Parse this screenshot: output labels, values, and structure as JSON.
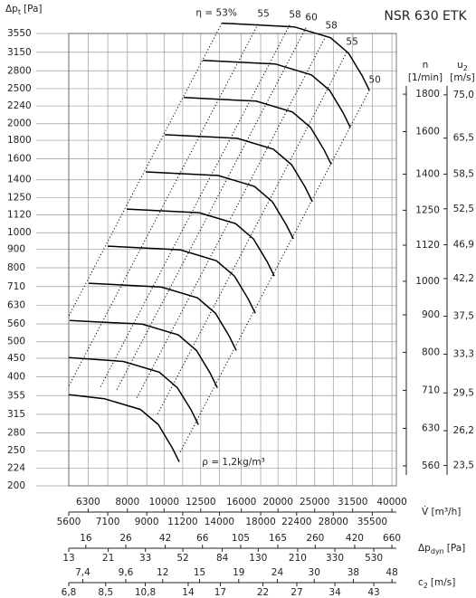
{
  "chart_data": {
    "type": "line",
    "title": "NSR 630 ETK",
    "y_label": {
      "text": "Δp",
      "sub": "t",
      "unit": "[Pa]"
    },
    "x_label": "V̇ [m³/h]",
    "x_scale": "log",
    "y_scale": "log",
    "grid": true,
    "color": "#000000",
    "xlim": [
      5600,
      41100
    ],
    "ylim": [
      200,
      3550
    ],
    "xticks": [
      5600,
      6300,
      7100,
      8000,
      9000,
      10000,
      11200,
      12500,
      14000,
      16000,
      18000,
      20000,
      22400,
      25000,
      28000,
      31500,
      35500,
      40000
    ],
    "yticks": [
      3550,
      3150,
      2800,
      2500,
      2240,
      2000,
      1800,
      1600,
      1400,
      1250,
      1120,
      1000,
      900,
      800,
      710,
      630,
      560,
      500,
      450,
      400,
      355,
      315,
      280,
      250,
      224,
      200
    ],
    "series": [
      {
        "x": [
          14210,
          22080,
          27520,
          30720,
          33370,
          34870
        ],
        "values": [
          3790,
          3703,
          3456,
          3133,
          2714,
          2475
        ]
      },
      {
        "x": [
          12660,
          19670,
          24510,
          27370,
          29730,
          31060
        ],
        "values": [
          2992,
          2924,
          2728,
          2473,
          2143,
          1954
        ]
      },
      {
        "x": [
          11280,
          17520,
          21840,
          24380,
          26480,
          27670
        ],
        "values": [
          2362,
          2308,
          2154,
          1953,
          1692,
          1543
        ]
      },
      {
        "x": [
          10050,
          15610,
          19450,
          21720,
          23590,
          24650
        ],
        "values": [
          1865,
          1822,
          1701,
          1542,
          1336,
          1218
        ]
      },
      {
        "x": [
          8950,
          13900,
          17330,
          19340,
          21010,
          21960
        ],
        "values": [
          1472,
          1439,
          1343,
          1217,
          1054,
          962
        ]
      },
      {
        "x": [
          7970,
          12380,
          15440,
          17230,
          18720,
          19560
        ],
        "values": [
          1162,
          1136,
          1060,
          961,
          832,
          759
        ]
      },
      {
        "x": [
          7100,
          11030,
          13750,
          15350,
          16680,
          17420
        ],
        "values": [
          918,
          897,
          837,
          759,
          657,
          599
        ]
      },
      {
        "x": [
          6320,
          9830,
          12250,
          13670,
          14850,
          15520
        ],
        "values": [
          725,
          708,
          661,
          599,
          519,
          473
        ]
      },
      {
        "x": [
          5630,
          8750,
          10910,
          12180,
          13230,
          13830
        ],
        "values": [
          572,
          559,
          522,
          473,
          410,
          373
        ]
      },
      {
        "x": [
          5600,
          7800,
          9720,
          10850,
          11790,
          12320
        ],
        "values": [
          452,
          441,
          412,
          373,
          324,
          295
        ]
      },
      {
        "x": [
          5600,
          6950,
          8660,
          9660,
          10500,
          10970
        ],
        "values": [
          357,
          348,
          325,
          295,
          255,
          233
        ]
      }
    ],
    "efficiency_lines": [
      {
        "label": "η = 53%",
        "x": 14210,
        "y": 3790
      },
      {
        "label": "55",
        "x": 17710,
        "y": 3770
      },
      {
        "label": "58",
        "x": 21470,
        "y": 3746
      },
      {
        "label": "60",
        "x": 23710,
        "y": 3681
      },
      {
        "label": "58",
        "x": 26770,
        "y": 3495
      },
      {
        "label": "55",
        "x": 30380,
        "y": 3151
      },
      {
        "label": "50",
        "x": 34870,
        "y": 2475
      }
    ],
    "annotation": "ρ = 1,2kg/m³",
    "n_axis": {
      "label": [
        "n",
        "[1/min]"
      ],
      "ylim": [
        526,
        2178
      ],
      "yticks": [
        1800,
        1600,
        1400,
        1250,
        1120,
        1000,
        900,
        800,
        710,
        630,
        560
      ]
    },
    "u2_axis": {
      "label": {
        "text": "u",
        "sub": "2",
        "unit": "[m/s]"
      },
      "ylim": [
        22.05,
        90.9
      ],
      "yticks": [
        {
          "value": 75.0,
          "label": "75,0"
        },
        {
          "value": 65.5,
          "label": "65,5"
        },
        {
          "value": 58.5,
          "label": "58,5"
        },
        {
          "value": 52.5,
          "label": "52,5"
        },
        {
          "value": 46.9,
          "label": "46,9"
        },
        {
          "value": 42.2,
          "label": "42,2"
        },
        {
          "value": 37.5,
          "label": "37,5"
        },
        {
          "value": 33.3,
          "label": "33,3"
        },
        {
          "value": 29.5,
          "label": "29,5"
        },
        {
          "value": 26.2,
          "label": "26,2"
        },
        {
          "value": 23.5,
          "label": "23,5"
        }
      ]
    },
    "dyn_axis": {
      "label": {
        "text": "Δp",
        "sub": "dyn",
        "unit": "[Pa]"
      },
      "xlim": [
        13,
        697
      ],
      "xticks": [
        13,
        16,
        21,
        26,
        33,
        42,
        52,
        66,
        84,
        105,
        130,
        165,
        210,
        260,
        330,
        420,
        530,
        660
      ]
    },
    "c2_axis": {
      "label": {
        "text": "c",
        "sub": "2",
        "unit": "[m/s]"
      },
      "xlim": [
        6.8,
        49.3
      ],
      "xticks": [
        {
          "value": 6.8,
          "label": "6,8"
        },
        {
          "value": 7.4,
          "label": "7,4"
        },
        {
          "value": 8.5,
          "label": "8,5"
        },
        {
          "value": 9.6,
          "label": "9,6"
        },
        {
          "value": 10.8,
          "label": "10,8"
        },
        12,
        14,
        15,
        17,
        19,
        22,
        24,
        27,
        30,
        34,
        38,
        43,
        48
      ]
    }
  }
}
